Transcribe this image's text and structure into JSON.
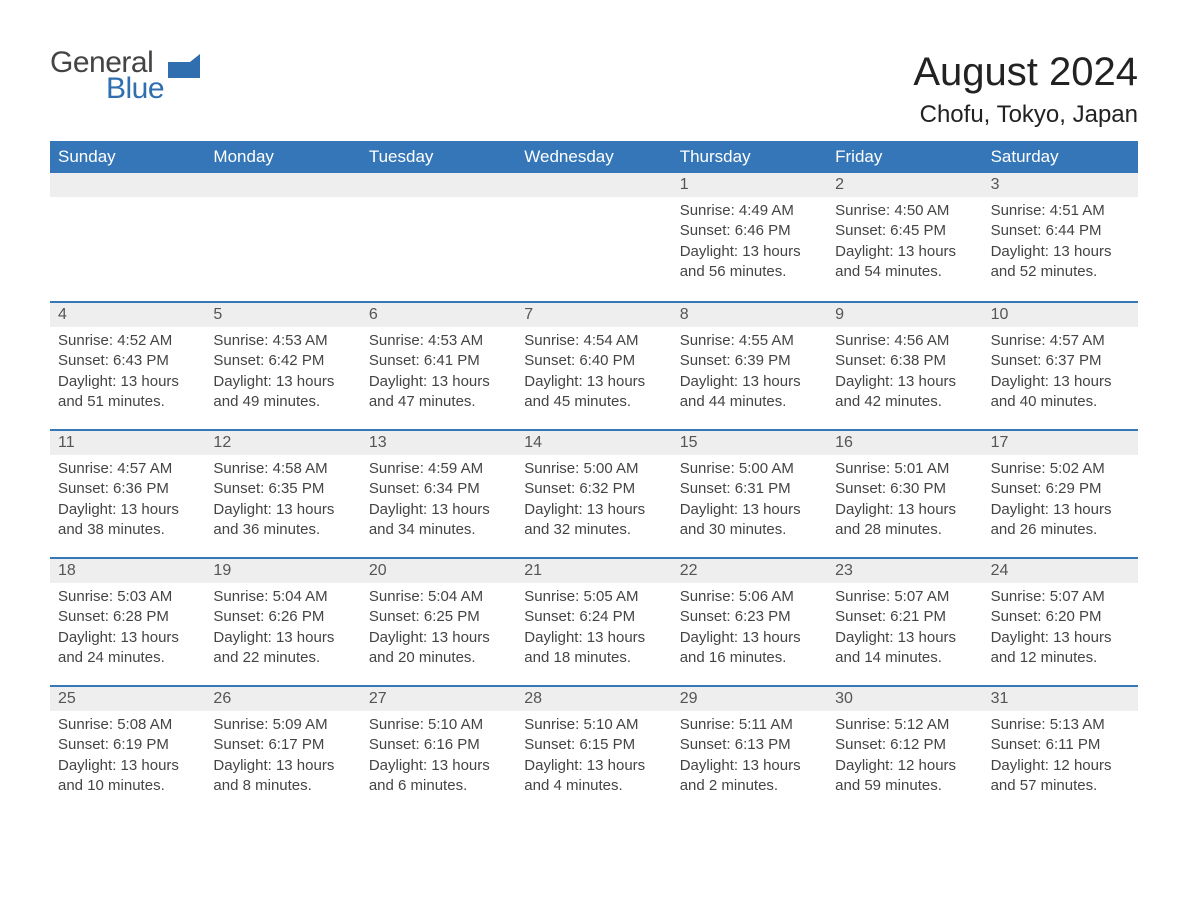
{
  "logo": {
    "word1": "General",
    "word2": "Blue",
    "flag_color": "#2f6fb0"
  },
  "title": {
    "month": "August 2024",
    "location": "Chofu, Tokyo, Japan"
  },
  "colors": {
    "header_bg": "#3476b7",
    "header_text": "#ffffff",
    "daynum_bg": "#eeeeee",
    "row_border": "#3476b7",
    "body_text": "#444444"
  },
  "weekdays": [
    "Sunday",
    "Monday",
    "Tuesday",
    "Wednesday",
    "Thursday",
    "Friday",
    "Saturday"
  ],
  "weeks": [
    [
      {
        "blank": true
      },
      {
        "blank": true
      },
      {
        "blank": true
      },
      {
        "blank": true
      },
      {
        "num": "1",
        "sunrise": "4:49 AM",
        "sunset": "6:46 PM",
        "daylight": "13 hours and 56 minutes."
      },
      {
        "num": "2",
        "sunrise": "4:50 AM",
        "sunset": "6:45 PM",
        "daylight": "13 hours and 54 minutes."
      },
      {
        "num": "3",
        "sunrise": "4:51 AM",
        "sunset": "6:44 PM",
        "daylight": "13 hours and 52 minutes."
      }
    ],
    [
      {
        "num": "4",
        "sunrise": "4:52 AM",
        "sunset": "6:43 PM",
        "daylight": "13 hours and 51 minutes."
      },
      {
        "num": "5",
        "sunrise": "4:53 AM",
        "sunset": "6:42 PM",
        "daylight": "13 hours and 49 minutes."
      },
      {
        "num": "6",
        "sunrise": "4:53 AM",
        "sunset": "6:41 PM",
        "daylight": "13 hours and 47 minutes."
      },
      {
        "num": "7",
        "sunrise": "4:54 AM",
        "sunset": "6:40 PM",
        "daylight": "13 hours and 45 minutes."
      },
      {
        "num": "8",
        "sunrise": "4:55 AM",
        "sunset": "6:39 PM",
        "daylight": "13 hours and 44 minutes."
      },
      {
        "num": "9",
        "sunrise": "4:56 AM",
        "sunset": "6:38 PM",
        "daylight": "13 hours and 42 minutes."
      },
      {
        "num": "10",
        "sunrise": "4:57 AM",
        "sunset": "6:37 PM",
        "daylight": "13 hours and 40 minutes."
      }
    ],
    [
      {
        "num": "11",
        "sunrise": "4:57 AM",
        "sunset": "6:36 PM",
        "daylight": "13 hours and 38 minutes."
      },
      {
        "num": "12",
        "sunrise": "4:58 AM",
        "sunset": "6:35 PM",
        "daylight": "13 hours and 36 minutes."
      },
      {
        "num": "13",
        "sunrise": "4:59 AM",
        "sunset": "6:34 PM",
        "daylight": "13 hours and 34 minutes."
      },
      {
        "num": "14",
        "sunrise": "5:00 AM",
        "sunset": "6:32 PM",
        "daylight": "13 hours and 32 minutes."
      },
      {
        "num": "15",
        "sunrise": "5:00 AM",
        "sunset": "6:31 PM",
        "daylight": "13 hours and 30 minutes."
      },
      {
        "num": "16",
        "sunrise": "5:01 AM",
        "sunset": "6:30 PM",
        "daylight": "13 hours and 28 minutes."
      },
      {
        "num": "17",
        "sunrise": "5:02 AM",
        "sunset": "6:29 PM",
        "daylight": "13 hours and 26 minutes."
      }
    ],
    [
      {
        "num": "18",
        "sunrise": "5:03 AM",
        "sunset": "6:28 PM",
        "daylight": "13 hours and 24 minutes."
      },
      {
        "num": "19",
        "sunrise": "5:04 AM",
        "sunset": "6:26 PM",
        "daylight": "13 hours and 22 minutes."
      },
      {
        "num": "20",
        "sunrise": "5:04 AM",
        "sunset": "6:25 PM",
        "daylight": "13 hours and 20 minutes."
      },
      {
        "num": "21",
        "sunrise": "5:05 AM",
        "sunset": "6:24 PM",
        "daylight": "13 hours and 18 minutes."
      },
      {
        "num": "22",
        "sunrise": "5:06 AM",
        "sunset": "6:23 PM",
        "daylight": "13 hours and 16 minutes."
      },
      {
        "num": "23",
        "sunrise": "5:07 AM",
        "sunset": "6:21 PM",
        "daylight": "13 hours and 14 minutes."
      },
      {
        "num": "24",
        "sunrise": "5:07 AM",
        "sunset": "6:20 PM",
        "daylight": "13 hours and 12 minutes."
      }
    ],
    [
      {
        "num": "25",
        "sunrise": "5:08 AM",
        "sunset": "6:19 PM",
        "daylight": "13 hours and 10 minutes."
      },
      {
        "num": "26",
        "sunrise": "5:09 AM",
        "sunset": "6:17 PM",
        "daylight": "13 hours and 8 minutes."
      },
      {
        "num": "27",
        "sunrise": "5:10 AM",
        "sunset": "6:16 PM",
        "daylight": "13 hours and 6 minutes."
      },
      {
        "num": "28",
        "sunrise": "5:10 AM",
        "sunset": "6:15 PM",
        "daylight": "13 hours and 4 minutes."
      },
      {
        "num": "29",
        "sunrise": "5:11 AM",
        "sunset": "6:13 PM",
        "daylight": "13 hours and 2 minutes."
      },
      {
        "num": "30",
        "sunrise": "5:12 AM",
        "sunset": "6:12 PM",
        "daylight": "12 hours and 59 minutes."
      },
      {
        "num": "31",
        "sunrise": "5:13 AM",
        "sunset": "6:11 PM",
        "daylight": "12 hours and 57 minutes."
      }
    ]
  ],
  "labels": {
    "sunrise": "Sunrise:",
    "sunset": "Sunset:",
    "daylight": "Daylight:"
  }
}
